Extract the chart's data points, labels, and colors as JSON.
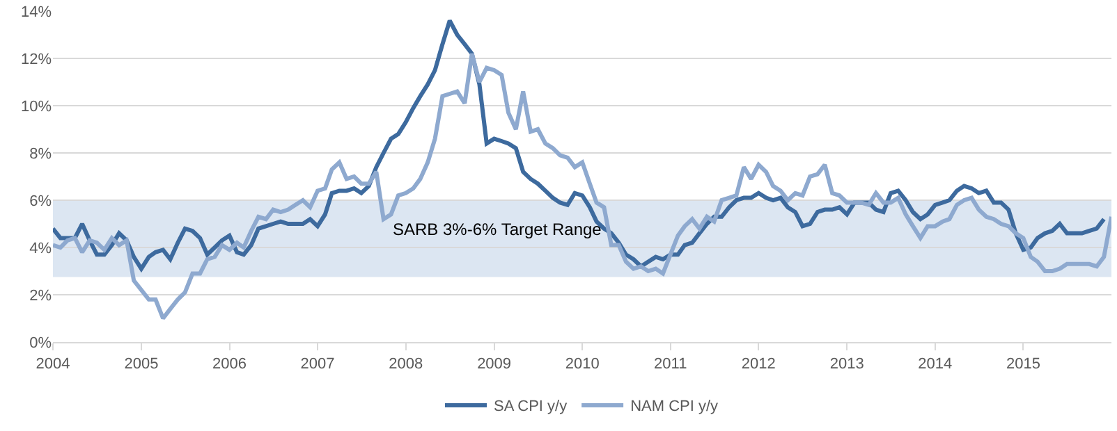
{
  "chart_data": {
    "type": "line",
    "x": [
      "2004-01",
      "2004-02",
      "2004-03",
      "2004-04",
      "2004-05",
      "2004-06",
      "2004-07",
      "2004-08",
      "2004-09",
      "2004-10",
      "2004-11",
      "2004-12",
      "2005-01",
      "2005-02",
      "2005-03",
      "2005-04",
      "2005-05",
      "2005-06",
      "2005-07",
      "2005-08",
      "2005-09",
      "2005-10",
      "2005-11",
      "2005-12",
      "2006-01",
      "2006-02",
      "2006-03",
      "2006-04",
      "2006-05",
      "2006-06",
      "2006-07",
      "2006-08",
      "2006-09",
      "2006-10",
      "2006-11",
      "2006-12",
      "2007-01",
      "2007-02",
      "2007-03",
      "2007-04",
      "2007-05",
      "2007-06",
      "2007-07",
      "2007-08",
      "2007-09",
      "2007-10",
      "2007-11",
      "2007-12",
      "2008-01",
      "2008-02",
      "2008-03",
      "2008-04",
      "2008-05",
      "2008-06",
      "2008-07",
      "2008-08",
      "2008-09",
      "2008-10",
      "2008-11",
      "2008-12",
      "2009-01",
      "2009-02",
      "2009-03",
      "2009-04",
      "2009-05",
      "2009-06",
      "2009-07",
      "2009-08",
      "2009-09",
      "2009-10",
      "2009-11",
      "2009-12",
      "2010-01",
      "2010-02",
      "2010-03",
      "2010-04",
      "2010-05",
      "2010-06",
      "2010-07",
      "2010-08",
      "2010-09",
      "2010-10",
      "2010-11",
      "2010-12",
      "2011-01",
      "2011-02",
      "2011-03",
      "2011-04",
      "2011-05",
      "2011-06",
      "2011-07",
      "2011-08",
      "2011-09",
      "2011-10",
      "2011-11",
      "2011-12",
      "2012-01",
      "2012-02",
      "2012-03",
      "2012-04",
      "2012-05",
      "2012-06",
      "2012-07",
      "2012-08",
      "2012-09",
      "2012-10",
      "2012-11",
      "2012-12",
      "2013-01",
      "2013-02",
      "2013-03",
      "2013-04",
      "2013-05",
      "2013-06",
      "2013-07",
      "2013-08",
      "2013-09",
      "2013-10",
      "2013-11",
      "2013-12",
      "2014-01",
      "2014-02",
      "2014-03",
      "2014-04",
      "2014-05",
      "2014-06",
      "2014-07",
      "2014-08",
      "2014-09",
      "2014-10",
      "2014-11",
      "2014-12",
      "2015-01",
      "2015-02",
      "2015-03",
      "2015-04",
      "2015-05",
      "2015-06",
      "2015-07",
      "2015-08",
      "2015-09",
      "2015-10",
      "2015-11",
      "2015-12",
      "2016-01"
    ],
    "series": [
      {
        "name": "SA CPI y/y",
        "color": "#3d6a9e",
        "values": [
          4.8,
          4.4,
          4.4,
          4.4,
          5.0,
          4.3,
          3.7,
          3.7,
          4.1,
          4.6,
          4.3,
          3.6,
          3.1,
          3.6,
          3.8,
          3.9,
          3.5,
          4.2,
          4.8,
          4.7,
          4.4,
          3.7,
          4.0,
          4.3,
          4.5,
          3.8,
          3.7,
          4.1,
          4.8,
          4.9,
          5.0,
          5.1,
          5.0,
          5.0,
          5.0,
          5.2,
          4.9,
          5.4,
          6.3,
          6.4,
          6.4,
          6.5,
          6.3,
          6.6,
          7.4,
          8.0,
          8.6,
          8.8,
          9.3,
          9.9,
          10.4,
          10.9,
          11.5,
          12.6,
          13.6,
          13.0,
          12.6,
          12.2,
          10.9,
          8.4,
          8.6,
          8.5,
          8.4,
          8.2,
          7.2,
          6.9,
          6.7,
          6.4,
          6.1,
          5.9,
          5.8,
          6.3,
          6.2,
          5.7,
          5.1,
          4.8,
          4.6,
          4.2,
          3.7,
          3.5,
          3.2,
          3.4,
          3.6,
          3.5,
          3.7,
          3.7,
          4.1,
          4.2,
          4.6,
          5.0,
          5.3,
          5.3,
          5.7,
          6.0,
          6.1,
          6.1,
          6.3,
          6.1,
          6.0,
          6.1,
          5.7,
          5.5,
          4.9,
          5.0,
          5.5,
          5.6,
          5.6,
          5.7,
          5.4,
          5.9,
          5.9,
          5.9,
          5.6,
          5.5,
          6.3,
          6.4,
          6.0,
          5.5,
          5.2,
          5.4,
          5.8,
          5.9,
          6.0,
          6.4,
          6.6,
          6.5,
          6.3,
          6.4,
          5.9,
          5.9,
          5.6,
          4.6,
          3.9,
          4.0,
          4.4,
          4.6,
          4.7,
          5.0,
          4.6,
          4.6,
          4.6,
          4.7,
          4.8,
          5.2,
          null
        ]
      },
      {
        "name": "NAM CPI y/y",
        "color": "#8ea9cf",
        "values": [
          4.1,
          4.0,
          4.3,
          4.4,
          3.8,
          4.3,
          4.2,
          3.9,
          4.4,
          4.1,
          4.3,
          2.6,
          2.2,
          1.8,
          1.8,
          1.0,
          1.4,
          1.8,
          2.1,
          2.9,
          2.9,
          3.5,
          3.6,
          4.1,
          3.9,
          4.2,
          4.0,
          4.7,
          5.3,
          5.2,
          5.6,
          5.5,
          5.6,
          5.8,
          6.0,
          5.7,
          6.4,
          6.5,
          7.3,
          7.6,
          6.9,
          7.0,
          6.7,
          6.7,
          7.2,
          5.2,
          5.4,
          6.2,
          6.3,
          6.5,
          6.9,
          7.6,
          8.6,
          10.4,
          10.5,
          10.6,
          10.1,
          12.2,
          11.0,
          11.6,
          11.5,
          11.3,
          9.7,
          9.0,
          10.6,
          8.9,
          9.0,
          8.4,
          8.2,
          7.9,
          7.8,
          7.4,
          7.6,
          6.7,
          5.9,
          5.7,
          4.1,
          4.1,
          3.4,
          3.1,
          3.2,
          3.0,
          3.1,
          2.9,
          3.7,
          4.5,
          4.9,
          5.2,
          4.8,
          5.3,
          5.1,
          6.0,
          6.1,
          6.2,
          7.4,
          6.9,
          7.5,
          7.2,
          6.6,
          6.4,
          6.0,
          6.3,
          6.2,
          7.0,
          7.1,
          7.5,
          6.3,
          6.2,
          5.9,
          5.9,
          5.9,
          5.8,
          6.3,
          5.9,
          5.9,
          6.1,
          5.4,
          4.9,
          4.4,
          4.9,
          4.9,
          5.1,
          5.2,
          5.8,
          6.0,
          6.1,
          5.6,
          5.3,
          5.2,
          5.0,
          4.9,
          4.6,
          4.4,
          3.6,
          3.4,
          3.0,
          3.0,
          3.1,
          3.3,
          3.3,
          3.3,
          3.3,
          3.2,
          3.6,
          5.3
        ]
      }
    ],
    "xlim": [
      "2004-01-01",
      "2016-01-01"
    ],
    "xticks": [
      "2004",
      "2005",
      "2006",
      "2007",
      "2008",
      "2009",
      "2010",
      "2011",
      "2012",
      "2013",
      "2014",
      "2015"
    ],
    "ylim": [
      0,
      14
    ],
    "yticks": [
      {
        "value": 0,
        "label": "0%"
      },
      {
        "value": 2,
        "label": "2%"
      },
      {
        "value": 4,
        "label": "4%"
      },
      {
        "value": 6,
        "label": "6%"
      },
      {
        "value": 8,
        "label": "8%"
      },
      {
        "value": 10,
        "label": "10%"
      },
      {
        "value": 12,
        "label": "12%"
      },
      {
        "value": 14,
        "label": "14%"
      }
    ],
    "bands": [
      {
        "axis": "y",
        "from": 2.75,
        "to": 6,
        "label": "SARB 3%-6% Target Range",
        "color": "#dce6f2"
      }
    ],
    "grid": "y",
    "legend": "bottom",
    "marker": "none",
    "line_style": "solid"
  }
}
